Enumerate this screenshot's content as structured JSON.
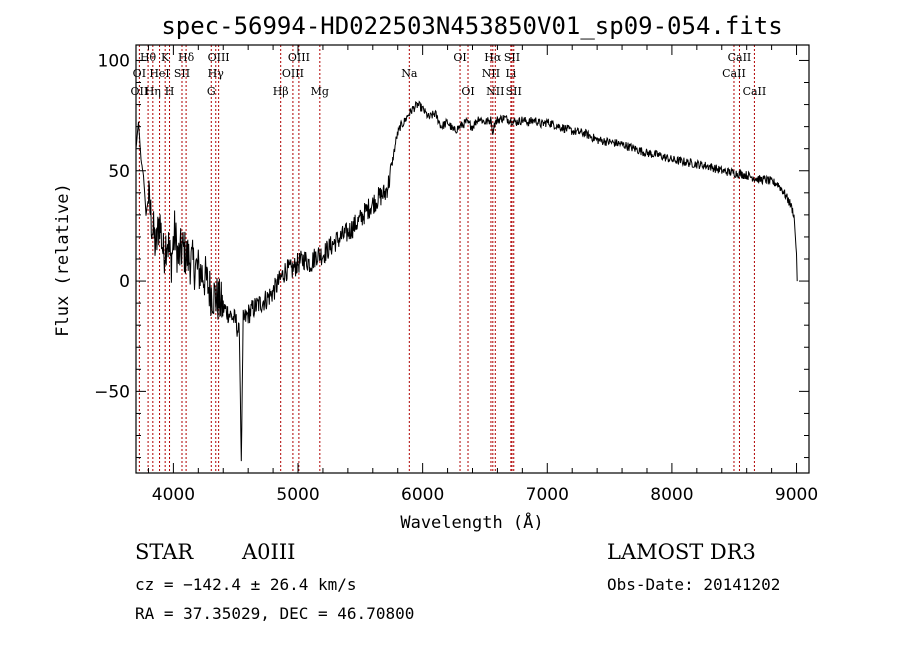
{
  "chart_data": {
    "type": "line",
    "title": "spec-56994-HD022503N453850V01_sp09-054.fits",
    "xlabel": "Wavelength (Å)",
    "ylabel": "Flux (relative)",
    "xlim": [
      3700,
      9100
    ],
    "ylim": [
      -87,
      107
    ],
    "xticks": [
      "4000",
      "5000",
      "6000",
      "7000",
      "8000",
      "9000"
    ],
    "xtick_values": [
      4000,
      5000,
      6000,
      7000,
      8000,
      9000
    ],
    "yticks": [
      "100",
      "50",
      "0",
      "−50"
    ],
    "ytick_values": [
      100,
      50,
      0,
      -50
    ],
    "line_color": "#000000",
    "marker_color": "#b00000",
    "series": [
      {
        "x": [
          3700,
          3720,
          3740,
          3760,
          3780,
          3800,
          3830,
          3860,
          3890,
          3920,
          3950,
          3980,
          4010,
          4040,
          4070,
          4100,
          4150,
          4200,
          4250,
          4300,
          4350,
          4400,
          4450,
          4500,
          4530,
          4545,
          4560,
          4600,
          4650,
          4700,
          4750,
          4800,
          4850,
          4900,
          4950,
          5000,
          5050,
          5100,
          5150,
          5200,
          5250,
          5300,
          5350,
          5400,
          5450,
          5500,
          5550,
          5600,
          5650,
          5700,
          5730,
          5760,
          5790,
          5820,
          5850,
          5880,
          5920,
          5960,
          6000,
          6050,
          6100,
          6150,
          6200,
          6250,
          6300,
          6350,
          6400,
          6450,
          6500,
          6550,
          6562,
          6575,
          6600,
          6650,
          6700,
          6750,
          6800,
          6850,
          6900,
          6950,
          7000,
          7100,
          7200,
          7300,
          7400,
          7500,
          7600,
          7700,
          7800,
          7900,
          8000,
          8100,
          8200,
          8300,
          8400,
          8500,
          8600,
          8650,
          8700,
          8750,
          8800,
          8850,
          8900,
          8950,
          8980,
          9000,
          9005
        ],
        "y": [
          60,
          72,
          55,
          48,
          30,
          38,
          25,
          15,
          28,
          12,
          20,
          8,
          22,
          10,
          15,
          12,
          8,
          5,
          2,
          -5,
          -8,
          -12,
          -15,
          -18,
          -25,
          -82,
          -18,
          -15,
          -12,
          -10,
          -8,
          -5,
          0,
          5,
          5,
          8,
          10,
          8,
          12,
          12,
          15,
          18,
          20,
          22,
          25,
          28,
          32,
          35,
          38,
          40,
          45,
          55,
          65,
          70,
          72,
          75,
          78,
          80,
          78,
          74,
          76,
          70,
          72,
          68,
          70,
          72,
          70,
          74,
          72,
          73,
          66,
          71,
          73,
          74,
          73,
          72,
          73,
          72,
          73,
          71,
          72,
          70,
          68,
          67,
          64,
          63,
          62,
          60,
          58,
          57,
          55,
          54,
          53,
          52,
          50,
          49,
          48,
          47,
          46,
          46,
          45,
          44,
          40,
          35,
          30,
          12,
          0
        ]
      }
    ],
    "lines": [
      {
        "name": "Hθ",
        "x": 3797,
        "row": 0
      },
      {
        "name": "K",
        "x": 3934,
        "row": 0
      },
      {
        "name": "Hδ",
        "x": 4102,
        "row": 0
      },
      {
        "name": "OIII",
        "x": 4363,
        "row": 0
      },
      {
        "name": "OIII",
        "x": 5007,
        "row": 0
      },
      {
        "name": "OI",
        "x": 6300,
        "row": 0
      },
      {
        "name": "Hα",
        "x": 6563,
        "row": 0
      },
      {
        "name": "SII",
        "x": 6717,
        "row": 0
      },
      {
        "name": "CaII",
        "x": 8542,
        "row": 0
      },
      {
        "name": "OI",
        "x": 3727,
        "row": 1
      },
      {
        "name": "HeI",
        "x": 3889,
        "row": 1
      },
      {
        "name": "SII",
        "x": 4069,
        "row": 1
      },
      {
        "name": "Hγ",
        "x": 4340,
        "row": 1
      },
      {
        "name": "OIII",
        "x": 4959,
        "row": 1
      },
      {
        "name": "Na",
        "x": 5893,
        "row": 1
      },
      {
        "name": "NII",
        "x": 6548,
        "row": 1
      },
      {
        "name": "Li",
        "x": 6708,
        "row": 1
      },
      {
        "name": "CaII",
        "x": 8498,
        "row": 1
      },
      {
        "name": "OII",
        "x": 3727,
        "row": 2
      },
      {
        "name": "Hη",
        "x": 3835,
        "row": 2
      },
      {
        "name": "H",
        "x": 3969,
        "row": 2
      },
      {
        "name": "G",
        "x": 4304,
        "row": 2
      },
      {
        "name": "Hβ",
        "x": 4861,
        "row": 2
      },
      {
        "name": "Mg",
        "x": 5175,
        "row": 2
      },
      {
        "name": "OI",
        "x": 6364,
        "row": 2
      },
      {
        "name": "NII",
        "x": 6583,
        "row": 2
      },
      {
        "name": "SII",
        "x": 6731,
        "row": 2
      },
      {
        "name": "CaII",
        "x": 8662,
        "row": 2
      }
    ]
  },
  "info": {
    "object_type": "STAR",
    "subclass": "A0III",
    "survey": "LAMOST DR3",
    "cz": "cz = −142.4 ± 26.4 km/s",
    "obs_date": "Obs-Date: 20141202",
    "coords": "RA =  37.35029, DEC =  46.70800"
  }
}
